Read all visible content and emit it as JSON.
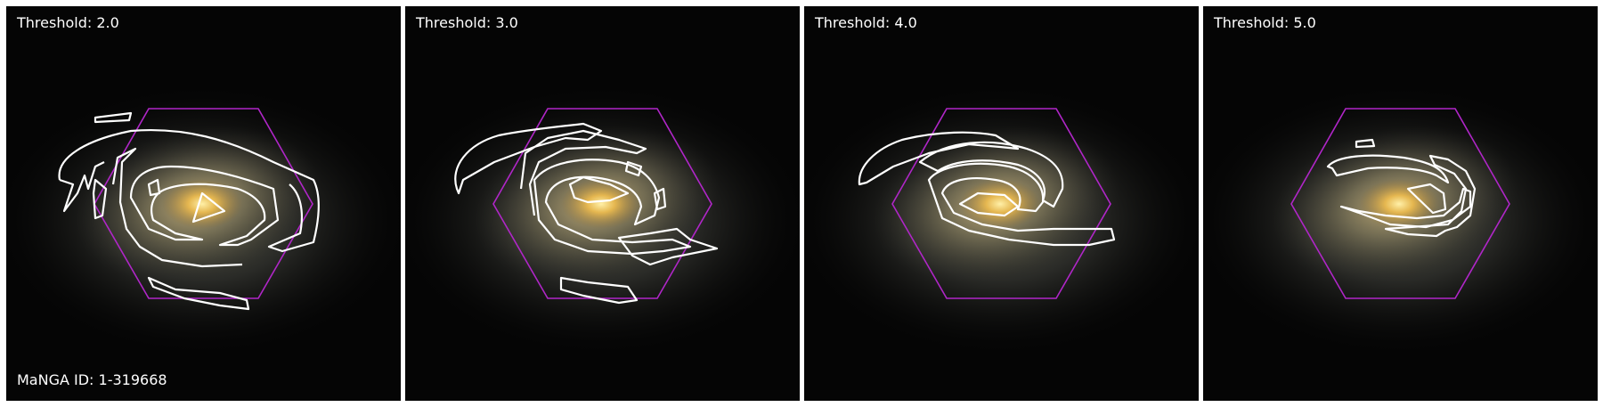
{
  "panels": [
    {
      "threshold_label": "Threshold: 2.0"
    },
    {
      "threshold_label": "Threshold: 3.0"
    },
    {
      "threshold_label": "Threshold: 4.0"
    },
    {
      "threshold_label": "Threshold: 5.0"
    }
  ],
  "manga_id_label": "MaNGA ID: 1-319668",
  "colors": {
    "background": "#050505",
    "hexagon": "#b026c8",
    "contour": "#ffffff",
    "core": "#f2c35a"
  }
}
